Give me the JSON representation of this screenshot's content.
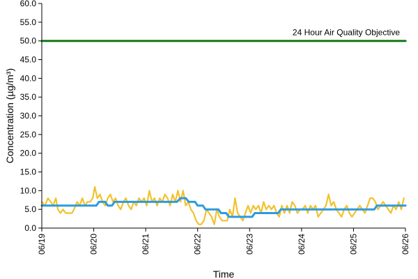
{
  "chart_data": {
    "type": "line",
    "title": "",
    "xlabel": "Time",
    "ylabel": "Concentration (µg/m³)",
    "ylim": [
      0,
      60
    ],
    "y_ticks": [
      "0.0",
      "5.0",
      "10.0",
      "15.0",
      "20.0",
      "25.0",
      "30.0",
      "35.0",
      "40.0",
      "45.0",
      "50.0",
      "55.0",
      "60.0"
    ],
    "x_range_days": [
      0,
      7
    ],
    "x_tick_labels": [
      "06/19",
      "06/20",
      "06/21",
      "06/22",
      "06/23",
      "06/24",
      "06/25",
      "06/26"
    ],
    "grid": false,
    "annotation": "24 Hour Air Quality Objective",
    "colors": {
      "objective": "#1e7d1e",
      "hourly": "#f2c12e",
      "daily": "#2b9be0"
    },
    "series": [
      {
        "key": "objective",
        "points": [
          [
            0,
            50
          ],
          [
            7,
            50
          ]
        ]
      },
      {
        "key": "daily",
        "points": [
          [
            0,
            6
          ],
          [
            1.05,
            6
          ],
          [
            1.1,
            7
          ],
          [
            1.22,
            7
          ],
          [
            1.27,
            6
          ],
          [
            1.35,
            6
          ],
          [
            1.4,
            7
          ],
          [
            2.6,
            7
          ],
          [
            2.67,
            8
          ],
          [
            2.77,
            8
          ],
          [
            2.83,
            7
          ],
          [
            2.95,
            7
          ],
          [
            3.0,
            6
          ],
          [
            3.1,
            6
          ],
          [
            3.15,
            5
          ],
          [
            3.4,
            5
          ],
          [
            3.45,
            4
          ],
          [
            3.55,
            4
          ],
          [
            3.6,
            3
          ],
          [
            4.05,
            3
          ],
          [
            4.1,
            4
          ],
          [
            4.55,
            4
          ],
          [
            4.6,
            5
          ],
          [
            6.4,
            5
          ],
          [
            6.45,
            6
          ],
          [
            7,
            6
          ]
        ]
      },
      {
        "key": "hourly",
        "points": [
          [
            0.0,
            7
          ],
          [
            0.06,
            6
          ],
          [
            0.12,
            8
          ],
          [
            0.17,
            7
          ],
          [
            0.22,
            6
          ],
          [
            0.27,
            8
          ],
          [
            0.31,
            5
          ],
          [
            0.36,
            4
          ],
          [
            0.41,
            5
          ],
          [
            0.46,
            4
          ],
          [
            0.52,
            4
          ],
          [
            0.58,
            4
          ],
          [
            0.62,
            5
          ],
          [
            0.68,
            7
          ],
          [
            0.73,
            6
          ],
          [
            0.78,
            8
          ],
          [
            0.83,
            6
          ],
          [
            0.88,
            7
          ],
          [
            0.93,
            7
          ],
          [
            0.98,
            8
          ],
          [
            1.02,
            11
          ],
          [
            1.07,
            8
          ],
          [
            1.12,
            9
          ],
          [
            1.17,
            7
          ],
          [
            1.22,
            6
          ],
          [
            1.27,
            8
          ],
          [
            1.32,
            9
          ],
          [
            1.37,
            7
          ],
          [
            1.42,
            8
          ],
          [
            1.47,
            6
          ],
          [
            1.52,
            5
          ],
          [
            1.57,
            7
          ],
          [
            1.62,
            8
          ],
          [
            1.67,
            6
          ],
          [
            1.72,
            5
          ],
          [
            1.77,
            7
          ],
          [
            1.82,
            6
          ],
          [
            1.87,
            8
          ],
          [
            1.92,
            7
          ],
          [
            1.97,
            8
          ],
          [
            2.02,
            6
          ],
          [
            2.07,
            10
          ],
          [
            2.12,
            7
          ],
          [
            2.17,
            8
          ],
          [
            2.22,
            6
          ],
          [
            2.27,
            8
          ],
          [
            2.32,
            7
          ],
          [
            2.37,
            9
          ],
          [
            2.42,
            8
          ],
          [
            2.47,
            6
          ],
          [
            2.52,
            9
          ],
          [
            2.57,
            7
          ],
          [
            2.62,
            10
          ],
          [
            2.67,
            7
          ],
          [
            2.72,
            10
          ],
          [
            2.77,
            6
          ],
          [
            2.82,
            7
          ],
          [
            2.87,
            5
          ],
          [
            2.92,
            4
          ],
          [
            2.97,
            2
          ],
          [
            3.02,
            1
          ],
          [
            3.07,
            1
          ],
          [
            3.12,
            2
          ],
          [
            3.17,
            5
          ],
          [
            3.22,
            4
          ],
          [
            3.27,
            3
          ],
          [
            3.32,
            1
          ],
          [
            3.37,
            5
          ],
          [
            3.42,
            3
          ],
          [
            3.47,
            2
          ],
          [
            3.52,
            2
          ],
          [
            3.57,
            2
          ],
          [
            3.62,
            5
          ],
          [
            3.67,
            3
          ],
          [
            3.72,
            8
          ],
          [
            3.77,
            4
          ],
          [
            3.82,
            3
          ],
          [
            3.87,
            2
          ],
          [
            3.92,
            4
          ],
          [
            3.97,
            6
          ],
          [
            4.02,
            4
          ],
          [
            4.07,
            6
          ],
          [
            4.12,
            5
          ],
          [
            4.17,
            6
          ],
          [
            4.22,
            4
          ],
          [
            4.27,
            7
          ],
          [
            4.32,
            5
          ],
          [
            4.37,
            6
          ],
          [
            4.42,
            5
          ],
          [
            4.47,
            6
          ],
          [
            4.52,
            4
          ],
          [
            4.57,
            3
          ],
          [
            4.62,
            6
          ],
          [
            4.67,
            4
          ],
          [
            4.72,
            6
          ],
          [
            4.77,
            4
          ],
          [
            4.82,
            7
          ],
          [
            4.87,
            6
          ],
          [
            4.92,
            4
          ],
          [
            4.97,
            5
          ],
          [
            5.02,
            5
          ],
          [
            5.07,
            6
          ],
          [
            5.12,
            4
          ],
          [
            5.17,
            6
          ],
          [
            5.22,
            5
          ],
          [
            5.27,
            6
          ],
          [
            5.32,
            3
          ],
          [
            5.37,
            4
          ],
          [
            5.42,
            5
          ],
          [
            5.47,
            6
          ],
          [
            5.52,
            9
          ],
          [
            5.57,
            6
          ],
          [
            5.62,
            7
          ],
          [
            5.67,
            5
          ],
          [
            5.72,
            4
          ],
          [
            5.77,
            3
          ],
          [
            5.82,
            5
          ],
          [
            5.87,
            6
          ],
          [
            5.92,
            4
          ],
          [
            5.97,
            3
          ],
          [
            6.02,
            4
          ],
          [
            6.07,
            5
          ],
          [
            6.12,
            6
          ],
          [
            6.17,
            5
          ],
          [
            6.22,
            4
          ],
          [
            6.27,
            6
          ],
          [
            6.32,
            8
          ],
          [
            6.37,
            8
          ],
          [
            6.42,
            7
          ],
          [
            6.47,
            5
          ],
          [
            6.52,
            6
          ],
          [
            6.57,
            7
          ],
          [
            6.62,
            6
          ],
          [
            6.67,
            5
          ],
          [
            6.72,
            4
          ],
          [
            6.77,
            6
          ],
          [
            6.82,
            5
          ],
          [
            6.87,
            7
          ],
          [
            6.92,
            5
          ],
          [
            6.97,
            8
          ]
        ]
      }
    ]
  }
}
